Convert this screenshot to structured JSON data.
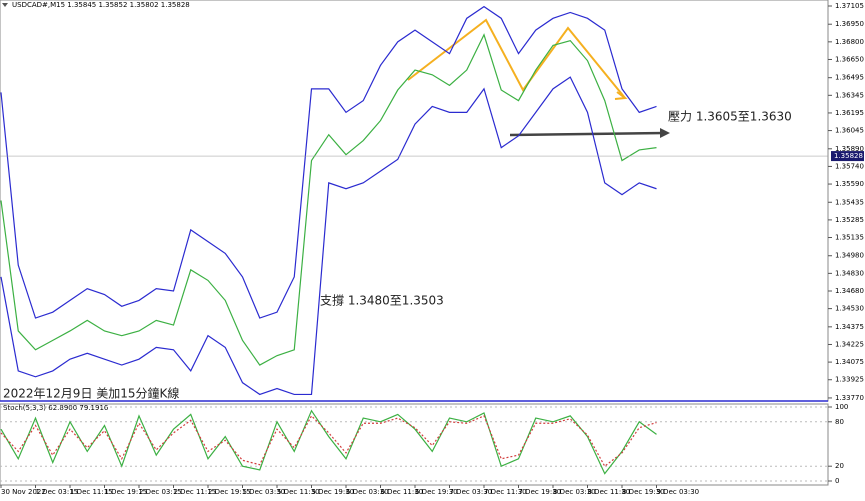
{
  "chart_data": [
    {
      "type": "line",
      "title": "USDCAD#,M15  1.35845 1.35852 1.35802 1.35828",
      "annotations": [
        "壓力 1.3605至1.3630",
        "支撐 1.3480至1.3503",
        "2022年12月9日 美加15分鐘K線"
      ],
      "current_price": 1.35828,
      "categories": [
        "30 Nov 2022",
        null,
        "1 Dec 03:15",
        null,
        "1 Dec 11:15",
        null,
        "1 Dec 19:15",
        null,
        "2 Dec 03:15",
        null,
        "2 Dec 11:15",
        null,
        "2 Dec 19:15",
        null,
        "5 Dec 03:30",
        null,
        "5 Dec 11:30",
        null,
        "5 Dec 19:30",
        null,
        "6 Dec 03:30",
        null,
        "6 Dec 11:30",
        null,
        "6 Dec 19:30",
        null,
        "7 Dec 03:30",
        null,
        "7 Dec 11:30",
        null,
        "7 Dec 19:30",
        null,
        "8 Dec 03:30",
        null,
        "8 Dec 11:30",
        null,
        "8 Dec 19:30",
        null,
        "9 Dec 03:30"
      ],
      "series": [
        {
          "color": "#3cb043",
          "values": [
            1.3545,
            1.3434,
            1.3418,
            1.3426,
            1.3434,
            1.3443,
            1.3434,
            1.343,
            1.3434,
            1.3443,
            1.3439,
            1.3486,
            1.3477,
            1.346,
            1.3426,
            1.3405,
            1.3413,
            1.3418,
            1.3579,
            1.3601,
            1.3584,
            1.3596,
            1.3613,
            1.3639,
            1.3656,
            1.3652,
            1.3643,
            1.3656,
            1.3686,
            1.3639,
            1.363,
            1.3656,
            1.3677,
            1.3681,
            1.3664,
            1.363,
            1.3579,
            1.3588,
            1.359
          ]
        },
        {
          "color": "#2b2bd0",
          "values": [
            1.3637,
            1.349,
            1.3445,
            1.345,
            1.346,
            1.347,
            1.3465,
            1.3455,
            1.346,
            1.347,
            1.3468,
            1.352,
            1.351,
            1.35,
            1.348,
            1.3445,
            1.345,
            1.348,
            1.364,
            1.364,
            1.362,
            1.363,
            1.366,
            1.368,
            1.369,
            1.368,
            1.367,
            1.37,
            1.371,
            1.37,
            1.367,
            1.369,
            1.37,
            1.3705,
            1.37,
            1.369,
            1.364,
            1.362,
            1.3625
          ]
        },
        {
          "color": "#2b2bd0",
          "values": [
            1.348,
            1.34,
            1.3395,
            1.34,
            1.341,
            1.3415,
            1.341,
            1.3405,
            1.341,
            1.342,
            1.3418,
            1.34,
            1.343,
            1.342,
            1.339,
            1.338,
            1.3385,
            1.338,
            1.338,
            1.356,
            1.3555,
            1.356,
            1.357,
            1.358,
            1.361,
            1.3625,
            1.362,
            1.362,
            1.364,
            1.359,
            1.36,
            1.362,
            1.364,
            1.365,
            1.362,
            1.356,
            1.355,
            1.356,
            1.3555
          ]
        }
      ],
      "ylim": [
        1.33744,
        1.37156
      ],
      "yticks": [
        1.37105,
        {
          "value": 1.3695,
          "label": "1.36950"
        },
        {
          "value": 1.368,
          "label": "1.36800"
        },
        {
          "value": 1.3665,
          "label": "1.36650"
        },
        1.36495,
        1.36345,
        1.36195,
        1.36045,
        {
          "value": 1.3589,
          "label": "1.35890"
        },
        {
          "value": 1.3574,
          "label": "1.35740"
        },
        {
          "value": 1.3559,
          "label": "1.35590"
        },
        1.35435,
        1.35285,
        1.35135,
        {
          "value": 1.3498,
          "label": "1.34980"
        },
        {
          "value": 1.3483,
          "label": "1.34830"
        },
        {
          "value": 1.3468,
          "label": "1.34680"
        },
        {
          "value": 1.3453,
          "label": "1.34530"
        },
        1.34375,
        1.34225,
        1.34075,
        1.33925,
        {
          "value": 1.3377,
          "label": "1.33770"
        }
      ]
    },
    {
      "type": "line",
      "title": "Stoch(5,3,3) 62.8900 79.1916",
      "series": [
        {
          "color": "#3cb043",
          "values": [
            70,
            30,
            85,
            25,
            80,
            40,
            75,
            20,
            88,
            35,
            70,
            90,
            30,
            60,
            20,
            15,
            80,
            40,
            95,
            60,
            30,
            85,
            80,
            90,
            70,
            40,
            85,
            80,
            92,
            20,
            30,
            85,
            80,
            88,
            60,
            10,
            40,
            80,
            63
          ]
        },
        {
          "color": "#d23c3c",
          "dashed": true,
          "values": [
            65,
            40,
            75,
            35,
            70,
            45,
            68,
            30,
            78,
            42,
            65,
            82,
            40,
            55,
            28,
            22,
            70,
            45,
            88,
            65,
            38,
            78,
            78,
            85,
            72,
            48,
            80,
            78,
            88,
            30,
            35,
            78,
            78,
            84,
            62,
            20,
            38,
            72,
            79
          ]
        }
      ],
      "ylim": [
        0,
        100
      ],
      "yticks": [
        0,
        20,
        80,
        100
      ]
    }
  ]
}
